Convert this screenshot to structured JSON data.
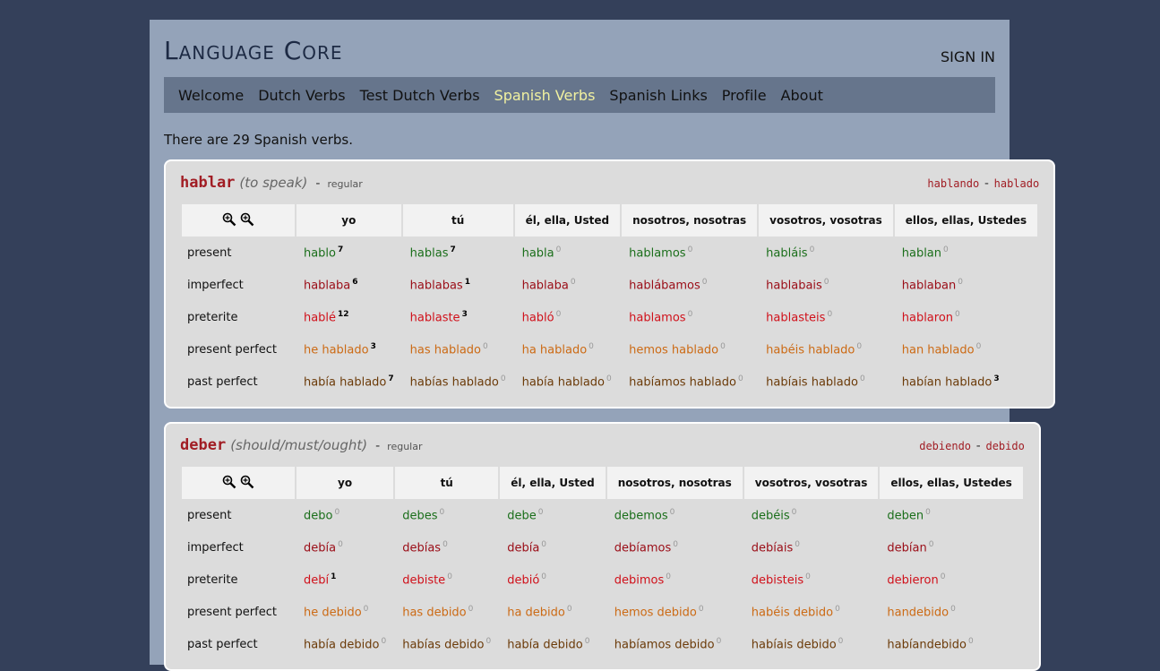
{
  "header": {
    "title": "Language Core",
    "sign_in": "SIGN IN"
  },
  "nav": {
    "items": [
      "Welcome",
      "Dutch Verbs",
      "Test Dutch Verbs",
      "Spanish Verbs",
      "Spanish Links",
      "Profile",
      "About"
    ],
    "active": 3
  },
  "intro": "There are 29 Spanish verbs.",
  "separator": "-",
  "pronouns": [
    "yo",
    "tú",
    "él, ella, Usted",
    "nosotros, nosotras",
    "vosotros, vosotras",
    "ellos, ellas, Ustedes"
  ],
  "tenses": [
    "present",
    "imperfect",
    "preterite",
    "present perfect",
    "past perfect"
  ],
  "verbs": [
    {
      "name": "hablar",
      "meaning": "(to speak)",
      "type": "regular",
      "gerund": "hablando",
      "participle": "hablado",
      "rows": [
        [
          {
            "form": "hablo",
            "count": 7
          },
          {
            "form": "hablas",
            "count": 7
          },
          {
            "form": "habla",
            "count": 0
          },
          {
            "form": "hablamos",
            "count": 0
          },
          {
            "form": "habláis",
            "count": 0
          },
          {
            "form": "hablan",
            "count": 0
          }
        ],
        [
          {
            "form": "hablaba",
            "count": 6
          },
          {
            "form": "hablabas",
            "count": 1
          },
          {
            "form": "hablaba",
            "count": 0
          },
          {
            "form": "hablábamos",
            "count": 0
          },
          {
            "form": "hablabais",
            "count": 0
          },
          {
            "form": "hablaban",
            "count": 0
          }
        ],
        [
          {
            "form": "hablé",
            "count": 12
          },
          {
            "form": "hablaste",
            "count": 3
          },
          {
            "form": "habló",
            "count": 0
          },
          {
            "form": "hablamos",
            "count": 0
          },
          {
            "form": "hablasteis",
            "count": 0
          },
          {
            "form": "hablaron",
            "count": 0
          }
        ],
        [
          {
            "form": "he hablado",
            "count": 3
          },
          {
            "form": "has hablado",
            "count": 0
          },
          {
            "form": "ha hablado",
            "count": 0
          },
          {
            "form": "hemos hablado",
            "count": 0
          },
          {
            "form": "habéis hablado",
            "count": 0
          },
          {
            "form": "han hablado",
            "count": 0
          }
        ],
        [
          {
            "form": "había hablado",
            "count": 7
          },
          {
            "form": "habías hablado",
            "count": 0
          },
          {
            "form": "había hablado",
            "count": 0
          },
          {
            "form": "habíamos hablado",
            "count": 0
          },
          {
            "form": "habíais hablado",
            "count": 0
          },
          {
            "form": "habían hablado",
            "count": 3
          }
        ]
      ]
    },
    {
      "name": "deber",
      "meaning": "(should/must/ought)",
      "type": "regular",
      "gerund": "debiendo",
      "participle": "debido",
      "rows": [
        [
          {
            "form": "debo",
            "count": 0
          },
          {
            "form": "debes",
            "count": 0
          },
          {
            "form": "debe",
            "count": 0
          },
          {
            "form": "debemos",
            "count": 0
          },
          {
            "form": "debéis",
            "count": 0
          },
          {
            "form": "deben",
            "count": 0
          }
        ],
        [
          {
            "form": "debía",
            "count": 0
          },
          {
            "form": "debías",
            "count": 0
          },
          {
            "form": "debía",
            "count": 0
          },
          {
            "form": "debíamos",
            "count": 0
          },
          {
            "form": "debíais",
            "count": 0
          },
          {
            "form": "debían",
            "count": 0
          }
        ],
        [
          {
            "form": "debí",
            "count": 1
          },
          {
            "form": "debiste",
            "count": 0
          },
          {
            "form": "debió",
            "count": 0
          },
          {
            "form": "debimos",
            "count": 0
          },
          {
            "form": "debisteis",
            "count": 0
          },
          {
            "form": "debieron",
            "count": 0
          }
        ],
        [
          {
            "form": "he debido",
            "count": 0
          },
          {
            "form": "has debido",
            "count": 0
          },
          {
            "form": "ha debido",
            "count": 0
          },
          {
            "form": "hemos debido",
            "count": 0
          },
          {
            "form": "habéis debido",
            "count": 0
          },
          {
            "form": "handebido",
            "count": 0
          }
        ],
        [
          {
            "form": "había debido",
            "count": 0
          },
          {
            "form": "habías debido",
            "count": 0
          },
          {
            "form": "había debido",
            "count": 0
          },
          {
            "form": "habíamos debido",
            "count": 0
          },
          {
            "form": "habíais debido",
            "count": 0
          },
          {
            "form": "habíandebido",
            "count": 0
          }
        ]
      ]
    }
  ]
}
